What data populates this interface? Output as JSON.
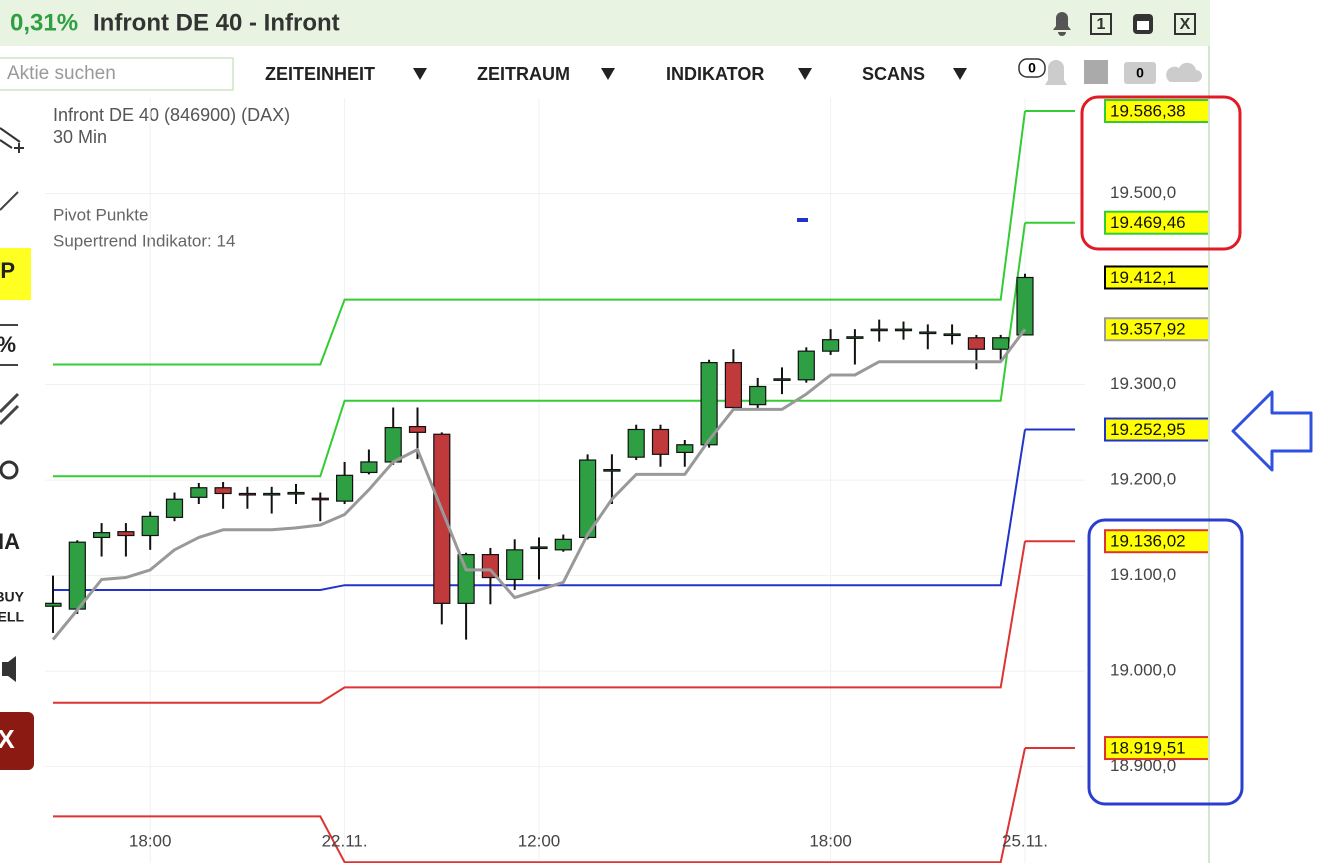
{
  "header": {
    "change": "0,31%",
    "title": "Infront DE 40 - Infront",
    "window_buttons": [
      "1",
      "X"
    ]
  },
  "toolbar": {
    "search_placeholder": "Aktie suchen",
    "menus": [
      "ZEITEINHEIT",
      "ZEITRAUM",
      "INDIKATOR",
      "SCANS"
    ],
    "badges": [
      "0",
      "0"
    ]
  },
  "sidebar": {
    "items": [
      "TP",
      "%",
      "MA",
      "BUY",
      "SELL",
      "X"
    ]
  },
  "chart_data": {
    "type": "candlestick",
    "title": "Infront DE 40 (846900) (DAX)",
    "subtitle": "30 Min",
    "indicators": [
      "Pivot Punkte",
      "Supertrend Indikator: 14"
    ],
    "categories": [
      null,
      null,
      null,
      null,
      "18:00",
      null,
      null,
      null,
      null,
      null,
      null,
      null,
      "22.11.",
      null,
      null,
      null,
      null,
      null,
      null,
      null,
      "12:00",
      null,
      null,
      null,
      null,
      null,
      null,
      null,
      null,
      null,
      null,
      null,
      "18:00",
      null,
      null,
      null,
      null,
      null,
      null,
      null,
      "25.11."
    ],
    "open": [
      19068,
      19065,
      19140,
      19146,
      19142,
      19161,
      19182,
      19192,
      19186,
      19185,
      19186,
      19181,
      19178,
      19208,
      19219,
      19256,
      19248,
      19071,
      19122,
      19096,
      19129,
      19127,
      19140,
      19210,
      19224,
      19253,
      19229,
      19237,
      19323,
      19279,
      19305,
      19305,
      19335,
      19349,
      19357,
      19357,
      19354,
      19352,
      19349,
      19337,
      19352
    ],
    "high": [
      19100,
      19137,
      19155,
      19155,
      19167,
      19187,
      19197,
      19198,
      19193,
      19193,
      19196,
      19187,
      19219,
      19232,
      19276,
      19276,
      19250,
      19124,
      19129,
      19138,
      19140,
      19143,
      19227,
      19227,
      19258,
      19258,
      19242,
      19326,
      19337,
      19307,
      19318,
      19339,
      19358,
      19358,
      19368,
      19366,
      19363,
      19363,
      19352,
      19352,
      19416
    ],
    "low": [
      19040,
      19060,
      19120,
      19120,
      19127,
      19157,
      19175,
      19170,
      19170,
      19165,
      19175,
      19157,
      19175,
      19206,
      19216,
      19222,
      19049,
      19033,
      19070,
      19085,
      19096,
      19125,
      19138,
      19175,
      19221,
      19214,
      19214,
      19234,
      19274,
      19274,
      19290,
      19302,
      19331,
      19321,
      19345,
      19347,
      19337,
      19342,
      19316,
      19326,
      19352
    ],
    "close": [
      19071,
      19135,
      19145,
      19142,
      19162,
      19180,
      19192,
      19186,
      19185,
      19186,
      19187,
      19180,
      19205,
      19219,
      19255,
      19250,
      19071,
      19122,
      19098,
      19127,
      19130,
      19138,
      19221,
      19211,
      19253,
      19227,
      19237,
      19323,
      19276,
      19298,
      19306,
      19335,
      19347,
      19350,
      19358,
      19358,
      19355,
      19353,
      19337,
      19349,
      19412.1
    ],
    "up_color": "#2ea043",
    "down_color": "#c0393b",
    "supertrend": {
      "color": "#999999",
      "values": [
        19033,
        19064,
        19096,
        19098,
        19106,
        19127,
        19140,
        19148,
        19148,
        19148,
        19150,
        19153,
        19164,
        19190,
        19219,
        19232,
        19169,
        19106,
        19106,
        19077,
        19085,
        19093,
        19143,
        19180,
        19206,
        19206,
        19206,
        19242,
        19274,
        19274,
        19274,
        19290,
        19310,
        19310,
        19324,
        19324,
        19324,
        19324,
        19324,
        19324,
        19357.92
      ]
    },
    "pivot_lines": [
      {
        "color": "#33cc33",
        "values": [
          19321,
          19321,
          19321,
          19321,
          19321,
          19321,
          19321,
          19321,
          19321,
          19321,
          19321,
          19321,
          19389,
          19389,
          19389,
          19389,
          19389,
          19389,
          19389,
          19389,
          19389,
          19389,
          19389,
          19389,
          19389,
          19389,
          19389,
          19389,
          19389,
          19389,
          19389,
          19389,
          19389,
          19389,
          19389,
          19389,
          19389,
          19389,
          19389,
          19389,
          19586.38
        ]
      },
      {
        "color": "#33cc33",
        "values": [
          19204,
          19204,
          19204,
          19204,
          19204,
          19204,
          19204,
          19204,
          19204,
          19204,
          19204,
          19204,
          19283,
          19283,
          19283,
          19283,
          19283,
          19283,
          19283,
          19283,
          19283,
          19283,
          19283,
          19283,
          19283,
          19283,
          19283,
          19283,
          19283,
          19283,
          19283,
          19283,
          19283,
          19283,
          19283,
          19283,
          19283,
          19283,
          19283,
          19283,
          19469.46
        ]
      },
      {
        "color": "#2233cc",
        "values": [
          19085,
          19085,
          19085,
          19085,
          19085,
          19085,
          19085,
          19085,
          19085,
          19085,
          19085,
          19085,
          19090,
          19090,
          19090,
          19090,
          19090,
          19090,
          19090,
          19090,
          19090,
          19090,
          19090,
          19090,
          19090,
          19090,
          19090,
          19090,
          19090,
          19090,
          19090,
          19090,
          19090,
          19090,
          19090,
          19090,
          19090,
          19090,
          19090,
          19090,
          19252.95
        ]
      },
      {
        "color": "#dd3333",
        "values": [
          18967,
          18967,
          18967,
          18967,
          18967,
          18967,
          18967,
          18967,
          18967,
          18967,
          18967,
          18967,
          18983,
          18983,
          18983,
          18983,
          18983,
          18983,
          18983,
          18983,
          18983,
          18983,
          18983,
          18983,
          18983,
          18983,
          18983,
          18983,
          18983,
          18983,
          18983,
          18983,
          18983,
          18983,
          18983,
          18983,
          18983,
          18983,
          18983,
          18983,
          19136.02
        ]
      },
      {
        "color": "#dd3333",
        "values": [
          18848,
          18848,
          18848,
          18848,
          18848,
          18848,
          18848,
          18848,
          18848,
          18848,
          18848,
          18848,
          18800,
          18800,
          18800,
          18800,
          18800,
          18800,
          18800,
          18800,
          18800,
          18800,
          18800,
          18800,
          18800,
          18800,
          18800,
          18800,
          18800,
          18800,
          18800,
          18800,
          18800,
          18800,
          18800,
          18800,
          18800,
          18800,
          18800,
          18800,
          18919.51
        ]
      }
    ],
    "price_labels": [
      {
        "value": 19586.38,
        "label": "19.586,38",
        "border": "#33cc33"
      },
      {
        "value": 19469.46,
        "label": "19.469,46",
        "border": "#33cc33"
      },
      {
        "value": 19412.1,
        "label": "19.412,1",
        "border": "#000000"
      },
      {
        "value": 19357.92,
        "label": "19.357,92",
        "border": "#999999"
      },
      {
        "value": 19252.95,
        "label": "19.252,95",
        "border": "#2233cc"
      },
      {
        "value": 19136.02,
        "label": "19.136,02",
        "border": "#dd3333"
      },
      {
        "value": 18919.51,
        "label": "18.919,51",
        "border": "#dd3333"
      }
    ],
    "ylim": [
      18840,
      19600
    ],
    "yticks": [
      {
        "value": 18900,
        "label": "18.900,0"
      },
      {
        "value": 19000,
        "label": "19.000,0"
      },
      {
        "value": 19100,
        "label": "19.100,0"
      },
      {
        "value": 19200,
        "label": "19.200,0"
      },
      {
        "value": 19300,
        "label": "19.300,0"
      },
      {
        "value": 19500,
        "label": "19.500,0"
      }
    ],
    "grid": true
  }
}
